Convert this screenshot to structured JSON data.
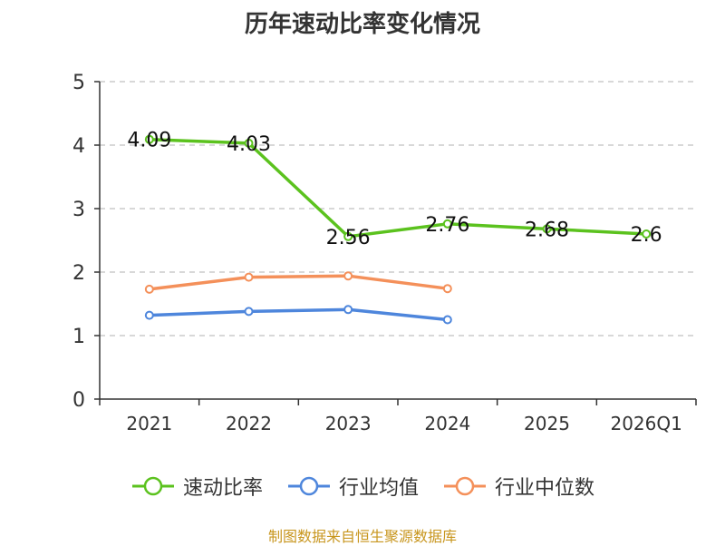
{
  "chart_data": {
    "type": "line",
    "title": "历年速动比率变化情况",
    "categories": [
      "2021",
      "2022",
      "2023",
      "2024",
      "2025",
      "2026Q1"
    ],
    "series": [
      {
        "name": "速动比率",
        "color": "#5bc21e",
        "values": [
          4.09,
          4.03,
          2.56,
          2.76,
          2.68,
          2.6
        ],
        "labels": [
          "4.09",
          "4.03",
          "2.56",
          "2.76",
          "2.68",
          "2.6"
        ]
      },
      {
        "name": "行业均值",
        "color": "#4e86dc",
        "values": [
          1.32,
          1.38,
          1.41,
          1.25,
          null,
          null
        ]
      },
      {
        "name": "行业中位数",
        "color": "#f4905a",
        "values": [
          1.73,
          1.92,
          1.94,
          1.74,
          null,
          null
        ]
      }
    ],
    "ylim": [
      0,
      5
    ],
    "yticks": [
      "0",
      "1",
      "2",
      "3",
      "4",
      "5"
    ],
    "grid": true,
    "legend": "bottom-center"
  },
  "source": "制图数据来自恒生聚源数据库"
}
